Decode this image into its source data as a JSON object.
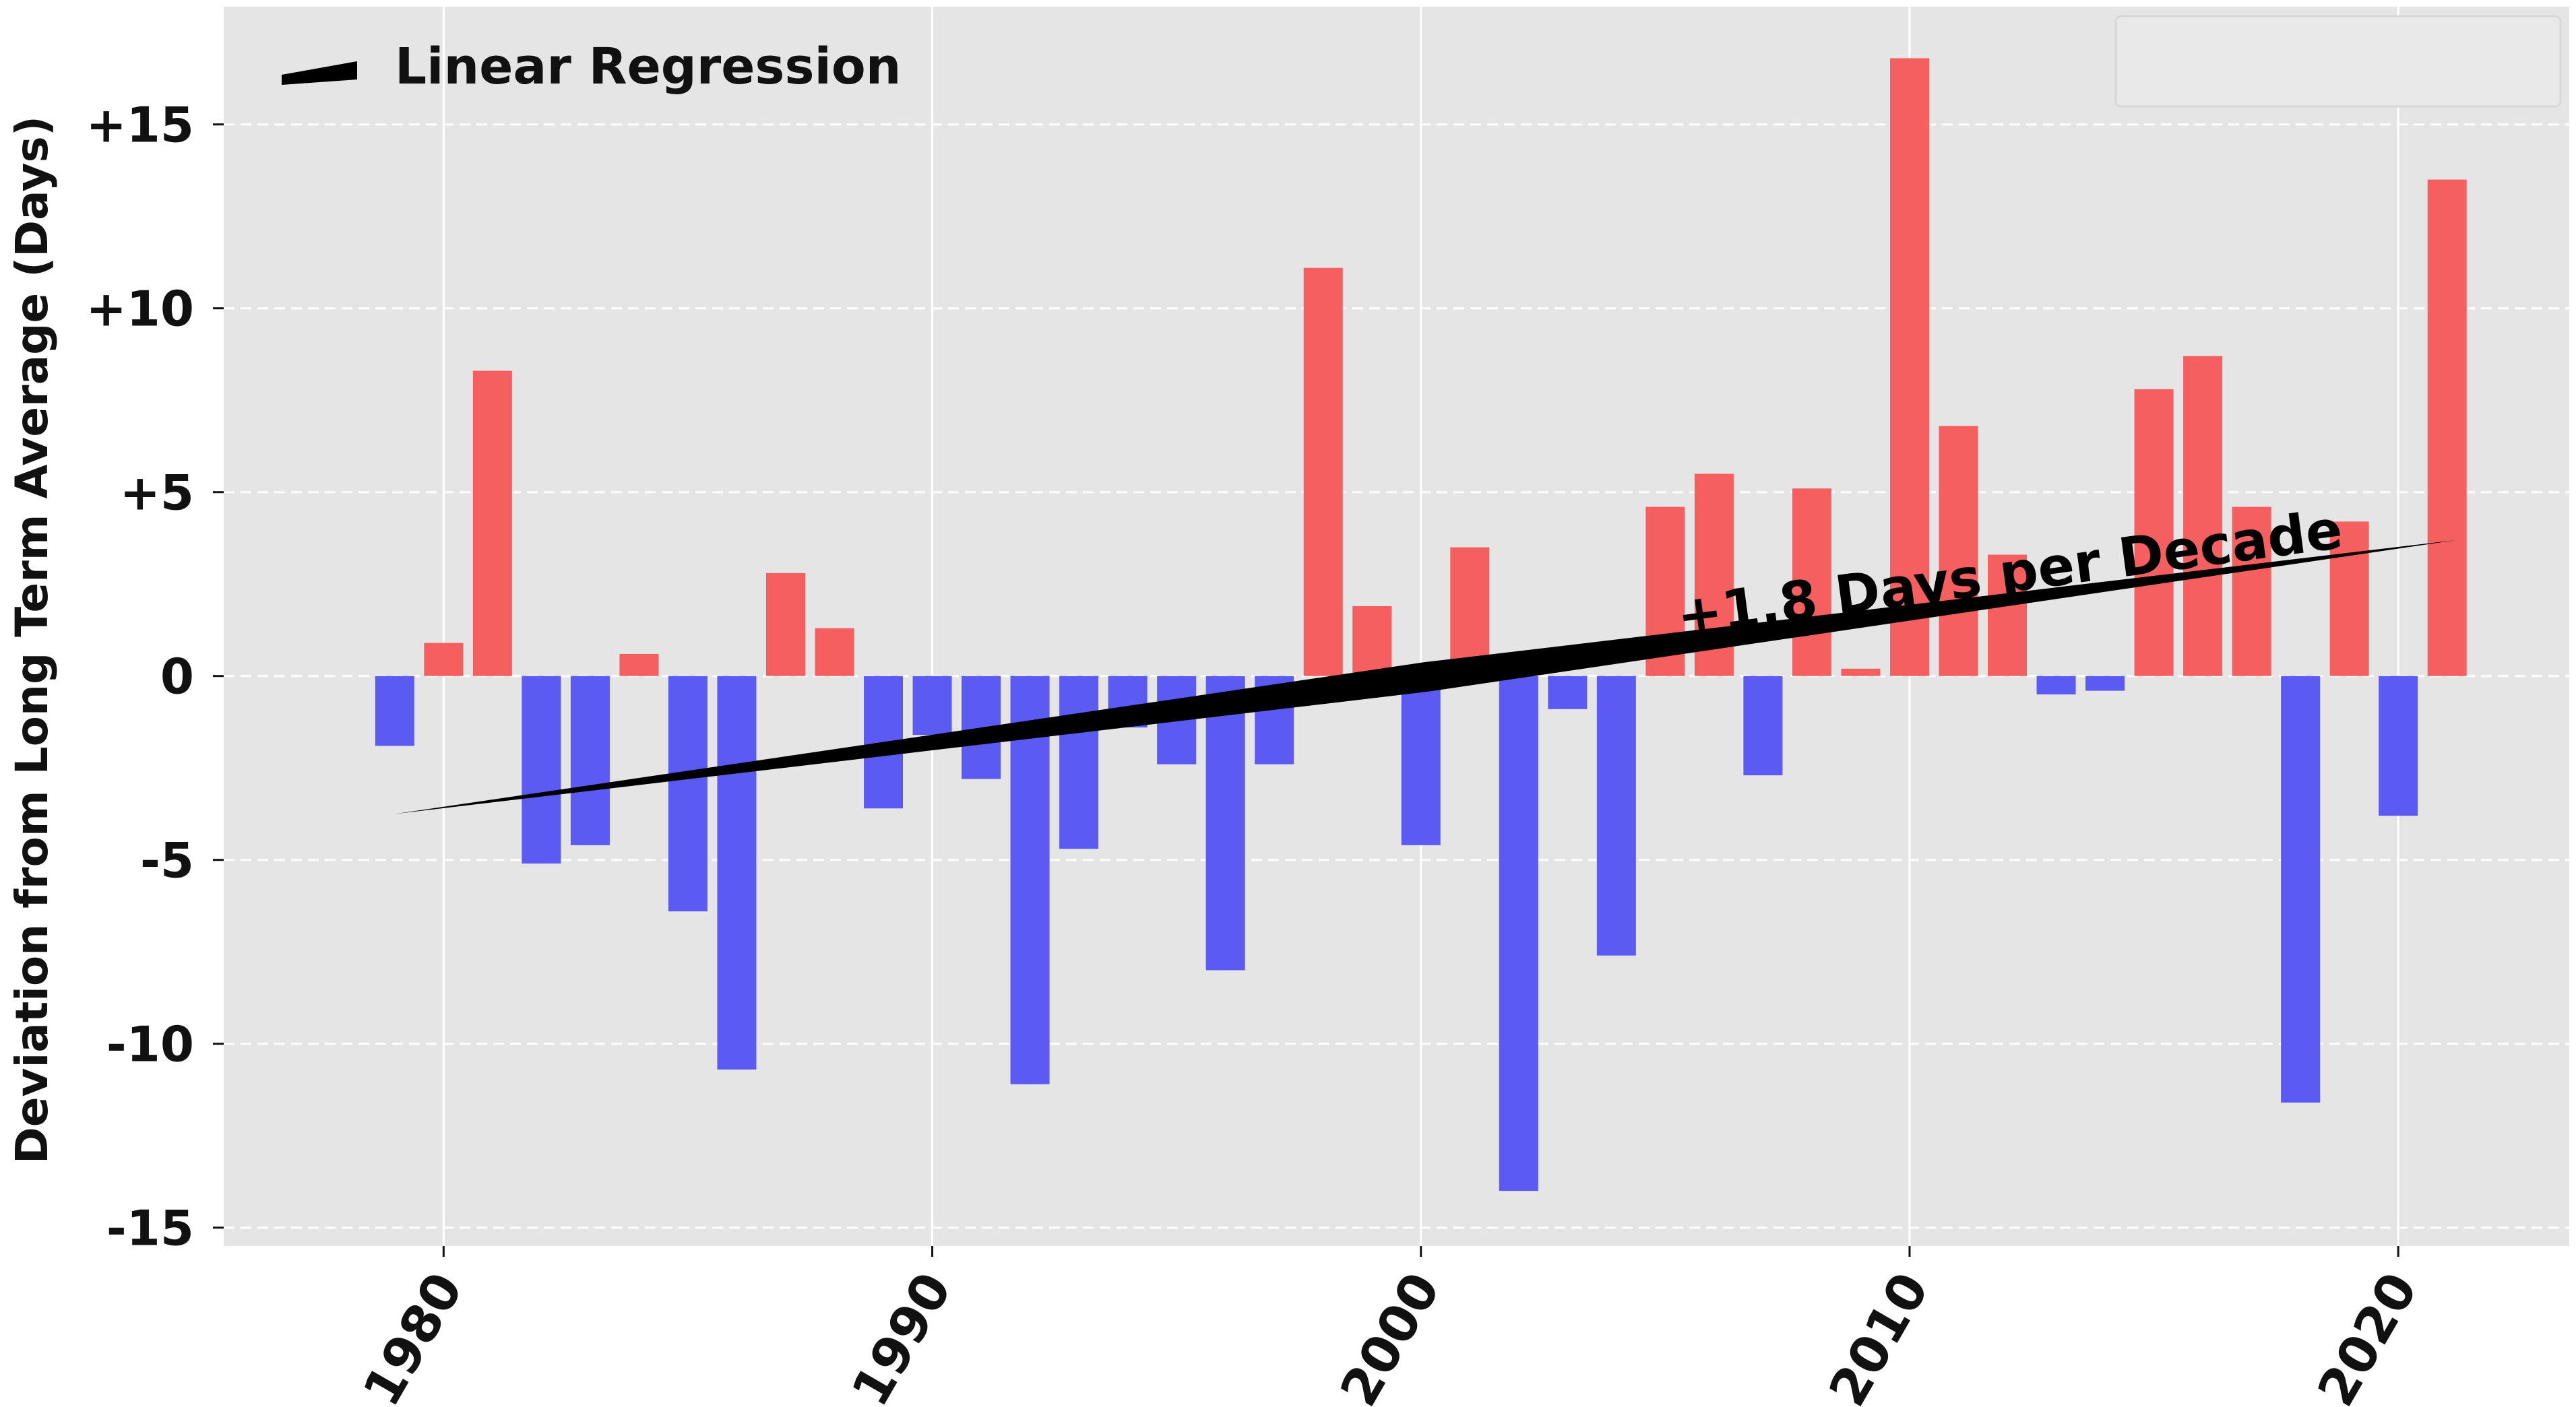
{
  "chart_data": {
    "type": "bar",
    "title": "",
    "xlabel": "",
    "ylabel": "Deviation from Long Term Average (Days)",
    "xlim": [
      1975.5,
      2023.5
    ],
    "ylim": [
      -15.5,
      18.2
    ],
    "grid": true,
    "legend_placement": "top-left",
    "x_ticks": [
      {
        "value": 1980,
        "label": "1980"
      },
      {
        "value": 1990,
        "label": "1990"
      },
      {
        "value": 2000,
        "label": "2000"
      },
      {
        "value": 2010,
        "label": "2010"
      },
      {
        "value": 2020,
        "label": "2020"
      }
    ],
    "y_ticks": [
      {
        "value": 15,
        "label": "+15"
      },
      {
        "value": 10,
        "label": "+10"
      },
      {
        "value": 5,
        "label": "+5"
      },
      {
        "value": 0,
        "label": "0"
      },
      {
        "value": -5,
        "label": "-5"
      },
      {
        "value": -10,
        "label": "-10"
      },
      {
        "value": -15,
        "label": "-15"
      }
    ],
    "years": [
      1979,
      1980,
      1981,
      1982,
      1983,
      1984,
      1985,
      1986,
      1987,
      1988,
      1989,
      1990,
      1991,
      1992,
      1993,
      1994,
      1995,
      1996,
      1997,
      1998,
      1999,
      2000,
      2001,
      2002,
      2003,
      2004,
      2005,
      2006,
      2007,
      2008,
      2009,
      2010,
      2011,
      2012,
      2013,
      2014,
      2015,
      2016,
      2017,
      2018,
      2019,
      2020,
      2021
    ],
    "values": [
      -1.9,
      0.9,
      8.3,
      -5.1,
      -4.6,
      0.6,
      -6.4,
      -10.7,
      2.8,
      1.3,
      -3.6,
      -1.6,
      -2.8,
      -11.1,
      -4.7,
      -1.4,
      -2.4,
      -8.0,
      -2.4,
      11.1,
      1.9,
      -4.6,
      3.5,
      -14.0,
      -0.9,
      -7.6,
      4.6,
      5.5,
      -2.7,
      5.1,
      0.2,
      16.8,
      6.8,
      3.3,
      -0.5,
      -0.4,
      7.8,
      8.7,
      4.6,
      -11.6,
      4.2,
      -3.8,
      13.5
    ],
    "colors": {
      "positive": "#f55f5f",
      "negative": "#5b5bf3",
      "regression": "#000000",
      "background": "#e5e5e5",
      "grid": "#ffffff"
    },
    "regression": {
      "label": "Linear Regression",
      "x": [
        1979,
        2021.2
      ],
      "y": [
        -3.75,
        3.7
      ],
      "annotation": "+1.8 Days per Decade"
    }
  }
}
